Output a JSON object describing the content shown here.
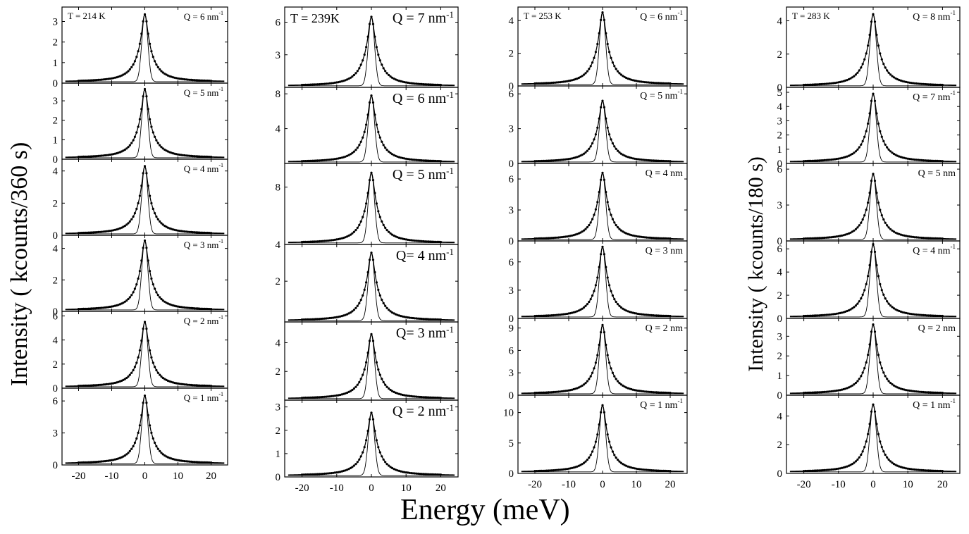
{
  "chart_data": [
    {
      "type": "line",
      "temperature_label": "T = 214 K",
      "xlim": [
        -25,
        25
      ],
      "xticks": [
        "-20",
        "-10",
        "0",
        "10",
        "20"
      ],
      "panels": [
        {
          "q_base": "Q = 6 nm",
          "q_sup": "-1",
          "peak": 3.35,
          "yticks": [
            "0",
            "1",
            "2",
            "3"
          ],
          "ylim": [
            0,
            3.6
          ]
        },
        {
          "q_base": "Q = 5 nm",
          "q_sup": "-1",
          "peak": 3.6,
          "yticks": [
            "0",
            "1",
            "2",
            "3"
          ],
          "ylim": [
            0,
            3.8
          ]
        },
        {
          "q_base": "Q = 4 nm",
          "q_sup": "-1",
          "peak": 4.3,
          "yticks": [
            "0",
            "2",
            "4"
          ],
          "ylim": [
            0,
            4.6
          ]
        },
        {
          "q_base": "Q = 3 nm",
          "q_sup": "-1",
          "peak": 4.5,
          "yticks": [
            "0",
            "2",
            "4"
          ],
          "ylim": [
            0,
            4.7
          ]
        },
        {
          "q_base": "Q = 2 nm",
          "q_sup": "-1",
          "peak": 5.5,
          "yticks": [
            "0",
            "2",
            "4",
            "6"
          ],
          "ylim": [
            0,
            6.2
          ]
        },
        {
          "q_base": "Q = 1 nm",
          "q_sup": "-1",
          "peak": 6.5,
          "yticks": [
            "0",
            "3",
            "6"
          ],
          "ylim": [
            0,
            7.0
          ]
        }
      ]
    },
    {
      "type": "line",
      "temperature_label": "T = 239K",
      "xlim": [
        -25,
        25
      ],
      "xticks": [
        "-20",
        "-10",
        "0",
        "10",
        "20"
      ],
      "panels": [
        {
          "q_base": "Q = 7 nm",
          "q_sup": "-1",
          "peak": 6.5,
          "yticks": [
            "3",
            "6"
          ],
          "ylim": [
            0,
            7.2
          ]
        },
        {
          "q_base": "Q = 6 nm",
          "q_sup": "-1",
          "peak": 7.8,
          "yticks": [
            "4",
            "8"
          ],
          "ylim": [
            0,
            8.5
          ]
        },
        {
          "q_base": "Q = 5 nm",
          "q_sup": "-1",
          "peak": 9.0,
          "yticks": [
            "4",
            "8"
          ],
          "ylim": [
            4,
            9.5
          ]
        },
        {
          "q_base": "Q= 4 nm",
          "q_sup": "-1",
          "peak": 3.4,
          "yticks": [
            "2"
          ],
          "ylim": [
            0,
            3.7
          ]
        },
        {
          "q_base": "Q= 3 nm",
          "q_sup": "-1",
          "peak": 4.6,
          "yticks": [
            "2",
            "4"
          ],
          "ylim": [
            0,
            5.3
          ]
        },
        {
          "q_base": "Q = 2 nm",
          "q_sup": "-1",
          "peak": 2.75,
          "yticks": [
            "0",
            "1",
            "2",
            "3"
          ],
          "ylim": [
            0,
            3.2
          ]
        }
      ]
    },
    {
      "type": "line",
      "temperature_label": "T = 253 K",
      "xlim": [
        -25,
        25
      ],
      "xticks": [
        "-20",
        "-10",
        "0",
        "10",
        "20"
      ],
      "panels": [
        {
          "q_base": "Q = 6 nm",
          "q_sup": "-1",
          "peak": 4.5,
          "yticks": [
            "0",
            "2",
            "4"
          ],
          "ylim": [
            0,
            4.7
          ]
        },
        {
          "q_base": "Q = 5 nm",
          "q_sup": "-1",
          "peak": 5.4,
          "yticks": [
            "0",
            "3",
            "6"
          ],
          "ylim": [
            0,
            6.5
          ]
        },
        {
          "q_base": "Q = 4 nm",
          "q_sup": "",
          "peak": 6.6,
          "yticks": [
            "0",
            "3",
            "6"
          ],
          "ylim": [
            0,
            7.3
          ]
        },
        {
          "q_base": "Q = 3 nm",
          "q_sup": "",
          "peak": 7.6,
          "yticks": [
            "0",
            "3",
            "6"
          ],
          "ylim": [
            0,
            8.0
          ]
        },
        {
          "q_base": "Q = 2 nm",
          "q_sup": "",
          "peak": 9.4,
          "yticks": [
            "0",
            "3",
            "6",
            "9"
          ],
          "ylim": [
            0,
            10.0
          ]
        },
        {
          "q_base": "Q = 1 nm",
          "q_sup": "-1",
          "peak": 11.2,
          "yticks": [
            "0",
            "5",
            "10"
          ],
          "ylim": [
            0,
            12.5
          ]
        }
      ]
    },
    {
      "type": "line",
      "temperature_label": "T = 283 K",
      "xlim": [
        -25,
        25
      ],
      "xticks": [
        "-20",
        "-10",
        "0",
        "10",
        "20"
      ],
      "panels": [
        {
          "q_base": "Q = 8 nm",
          "q_sup": "-1",
          "peak": 4.4,
          "yticks": [
            "0",
            "2",
            "4"
          ],
          "ylim": [
            0,
            4.7
          ]
        },
        {
          "q_base": "Q = 7 nm",
          "q_sup": "-1",
          "peak": 4.9,
          "yticks": [
            "0",
            "1",
            "2",
            "3",
            "4",
            "5"
          ],
          "ylim": [
            0,
            5.2
          ]
        },
        {
          "q_base": "Q = 5 nm",
          "q_sup": "",
          "peak": 5.6,
          "yticks": [
            "0",
            "3",
            "6"
          ],
          "ylim": [
            0,
            6.3
          ]
        },
        {
          "q_base": "Q = 4 nm",
          "q_sup": "-1",
          "peak": 6.4,
          "yticks": [
            "0",
            "2",
            "4",
            "6"
          ],
          "ylim": [
            0,
            6.5
          ]
        },
        {
          "q_base": "Q = 2 nm",
          "q_sup": "",
          "peak": 3.6,
          "yticks": [
            "0",
            "1",
            "2",
            "3"
          ],
          "ylim": [
            0,
            3.8
          ]
        },
        {
          "q_base": "Q = 1 nm",
          "q_sup": "-1",
          "peak": 4.8,
          "yticks": [
            "0",
            "2",
            "4"
          ],
          "ylim": [
            0,
            5.3
          ]
        }
      ]
    }
  ],
  "labels": {
    "ylabel_left": "Intensity ( kcounts/360 s)",
    "ylabel_right": "Intensity ( kcounts/180 s)",
    "xlabel": "Energy (meV)"
  }
}
